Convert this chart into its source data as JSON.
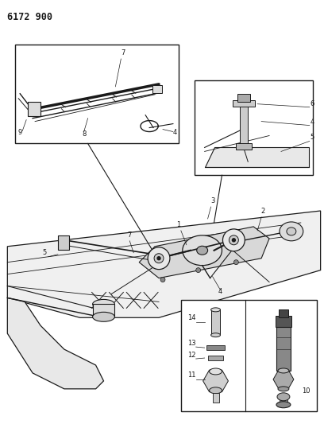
{
  "title": "6172 900",
  "background_color": "#ffffff",
  "line_color": "#1a1a1a",
  "fig_width": 4.08,
  "fig_height": 5.33,
  "dpi": 100,
  "label_fontsize": 6.0
}
